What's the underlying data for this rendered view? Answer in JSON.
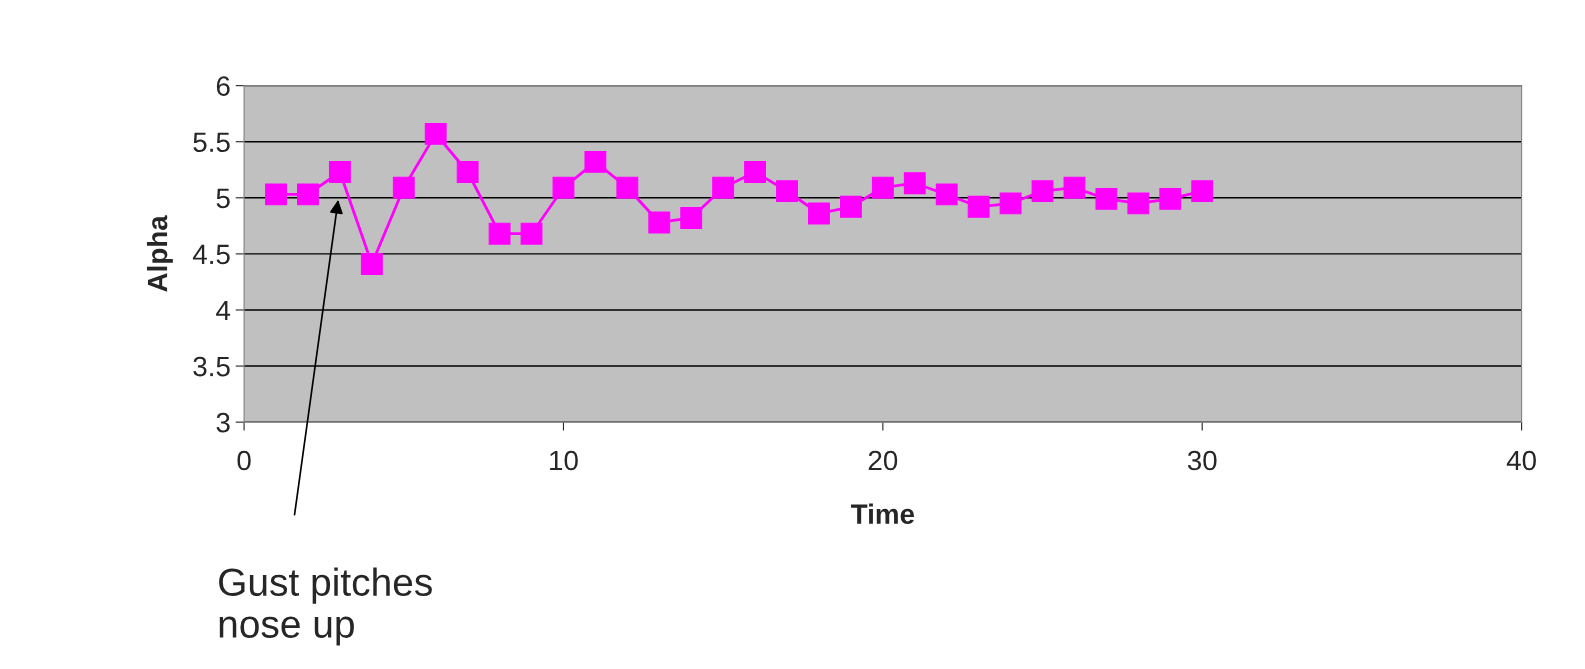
{
  "chart_data": {
    "type": "line",
    "xlabel": "Time",
    "ylabel": "Alpha",
    "x": [
      1,
      2,
      3,
      4,
      5,
      6,
      7,
      8,
      9,
      10,
      11,
      12,
      13,
      14,
      15,
      16,
      17,
      18,
      19,
      20,
      21,
      22,
      23,
      24,
      25,
      26,
      27,
      28,
      29,
      30
    ],
    "series": [
      {
        "color": "#ff00ff",
        "values": [
          5.03,
          5.03,
          5.23,
          4.41,
          5.09,
          5.57,
          5.23,
          4.68,
          4.68,
          5.09,
          5.32,
          5.09,
          4.78,
          4.82,
          5.09,
          5.23,
          5.06,
          4.86,
          4.92,
          5.09,
          5.13,
          5.03,
          4.92,
          4.95,
          5.06,
          5.09,
          4.99,
          4.95,
          4.99,
          5.06
        ]
      }
    ],
    "xlim": [
      0,
      40
    ],
    "xticks": [
      0,
      10,
      20,
      30,
      40
    ],
    "ylim": [
      3,
      6
    ],
    "yticks": [
      3,
      3.5,
      4,
      4.5,
      5,
      5.5,
      6
    ],
    "grid": "y",
    "marker": "square",
    "line_style": "solid",
    "annotations": [
      "Gust pitches\nnose up"
    ]
  }
}
